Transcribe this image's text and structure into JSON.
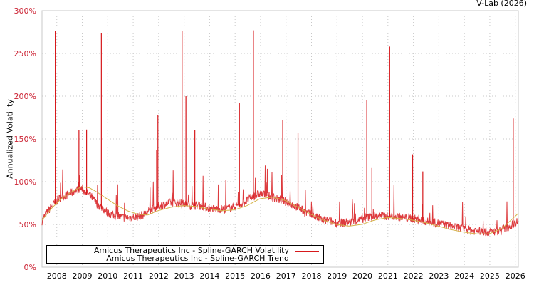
{
  "header": {
    "credit": "V-Lab (2026)"
  },
  "legend": {
    "items": [
      {
        "label": "Amicus Therapeutics Inc - Spline-GARCH Volatility",
        "color": "#d7191c"
      },
      {
        "label": "Amicus Therapeutics Inc - Spline-GARCH Trend",
        "color": "#d4b44a"
      }
    ]
  },
  "chart_data": {
    "type": "line",
    "title": "",
    "xlabel": "",
    "ylabel": "Annualized Volatility",
    "ylim": [
      0,
      300
    ],
    "xlim": [
      2007.45,
      2026.15
    ],
    "yticks": [
      "0%",
      "50%",
      "100%",
      "150%",
      "200%",
      "250%",
      "300%"
    ],
    "xticks": [
      "2008",
      "2009",
      "2010",
      "2011",
      "2012",
      "2013",
      "2014",
      "2015",
      "2016",
      "2017",
      "2018",
      "2019",
      "2020",
      "2021",
      "2022",
      "2023",
      "2024",
      "2025",
      "2026"
    ],
    "grid": true,
    "legend_position": "lower-left",
    "series": [
      {
        "name": "Amicus Therapeutics Inc - Spline-GARCH Volatility",
        "color": "#d7191c",
        "x": [
          2007.45,
          2007.6,
          2007.8,
          2008.0,
          2008.2,
          2008.4,
          2008.6,
          2008.8,
          2009.0,
          2009.2,
          2009.4,
          2009.6,
          2009.8,
          2010.0,
          2010.3,
          2010.6,
          2010.9,
          2011.2,
          2011.5,
          2011.8,
          2012.1,
          2012.4,
          2012.7,
          2013.0,
          2013.3,
          2013.6,
          2013.9,
          2014.2,
          2014.5,
          2014.8,
          2015.1,
          2015.4,
          2015.7,
          2016.0,
          2016.3,
          2016.6,
          2016.9,
          2017.2,
          2017.5,
          2017.8,
          2018.1,
          2018.4,
          2018.7,
          2019.0,
          2019.3,
          2019.6,
          2019.9,
          2020.2,
          2020.5,
          2020.8,
          2021.1,
          2021.4,
          2021.7,
          2022.0,
          2022.3,
          2022.6,
          2022.9,
          2023.2,
          2023.5,
          2023.8,
          2024.1,
          2024.4,
          2024.7,
          2025.0,
          2025.3,
          2025.6,
          2025.9,
          2026.1
        ],
        "values": [
          52,
          60,
          68,
          75,
          80,
          82,
          85,
          88,
          90,
          85,
          80,
          72,
          68,
          62,
          58,
          56,
          56,
          57,
          60,
          66,
          70,
          73,
          74,
          72,
          70,
          70,
          68,
          66,
          66,
          67,
          70,
          74,
          80,
          84,
          82,
          78,
          76,
          72,
          68,
          62,
          58,
          54,
          52,
          50,
          50,
          51,
          53,
          56,
          58,
          58,
          58,
          57,
          56,
          55,
          53,
          51,
          50,
          48,
          46,
          44,
          42,
          41,
          40,
          39,
          40,
          43,
          47,
          52
        ],
        "spikes": [
          {
            "x": 2007.97,
            "value": 276
          },
          {
            "x": 2008.9,
            "value": 160
          },
          {
            "x": 2009.2,
            "value": 161
          },
          {
            "x": 2009.78,
            "value": 274
          },
          {
            "x": 2011.95,
            "value": 137
          },
          {
            "x": 2012.0,
            "value": 178
          },
          {
            "x": 2012.95,
            "value": 276
          },
          {
            "x": 2013.1,
            "value": 200
          },
          {
            "x": 2013.45,
            "value": 160
          },
          {
            "x": 2015.2,
            "value": 192
          },
          {
            "x": 2015.75,
            "value": 277
          },
          {
            "x": 2016.9,
            "value": 172
          },
          {
            "x": 2017.5,
            "value": 157
          },
          {
            "x": 2020.2,
            "value": 195
          },
          {
            "x": 2020.4,
            "value": 116
          },
          {
            "x": 2021.1,
            "value": 258
          },
          {
            "x": 2022.0,
            "value": 132
          },
          {
            "x": 2022.4,
            "value": 112
          },
          {
            "x": 2025.95,
            "value": 174
          }
        ]
      },
      {
        "name": "Amicus Therapeutics Inc - Spline-GARCH Trend",
        "color": "#d4b44a",
        "x": [
          2007.45,
          2007.8,
          2008.2,
          2008.6,
          2009.0,
          2009.3,
          2009.6,
          2010.0,
          2010.4,
          2010.8,
          2011.2,
          2011.6,
          2012.0,
          2012.5,
          2013.0,
          2013.5,
          2014.0,
          2014.5,
          2015.0,
          2015.5,
          2016.0,
          2016.5,
          2017.0,
          2017.5,
          2018.0,
          2018.5,
          2019.0,
          2019.5,
          2020.0,
          2020.5,
          2021.0,
          2021.5,
          2022.0,
          2022.5,
          2023.0,
          2023.5,
          2024.0,
          2024.5,
          2025.0,
          2025.5,
          2026.15
        ],
        "values": [
          55,
          68,
          80,
          88,
          94,
          93,
          88,
          80,
          72,
          66,
          62,
          61,
          66,
          70,
          72,
          71,
          68,
          66,
          67,
          72,
          80,
          82,
          78,
          70,
          62,
          55,
          50,
          48,
          50,
          55,
          58,
          57,
          55,
          52,
          48,
          44,
          41,
          39,
          39,
          45,
          63
        ]
      }
    ]
  }
}
